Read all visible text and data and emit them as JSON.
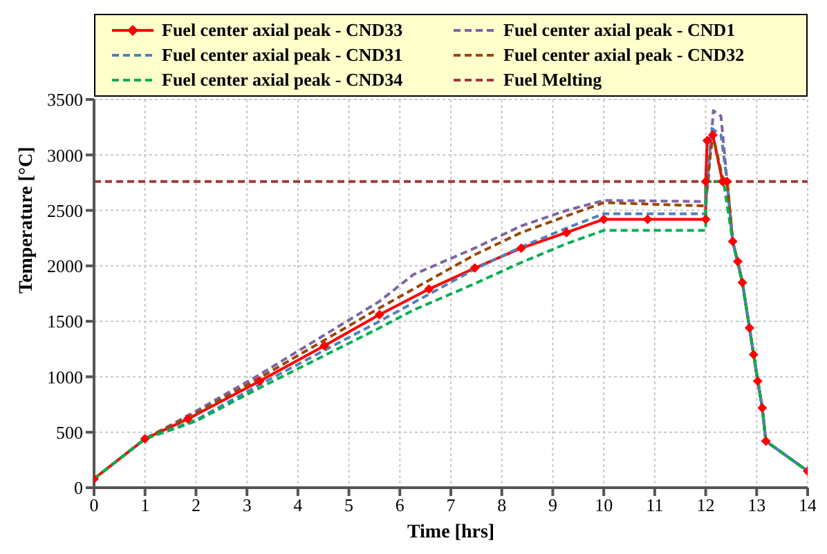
{
  "chart_data": {
    "type": "line",
    "xlabel": "Time [hrs]",
    "ylabel": "Temperature [°C]",
    "xlim": [
      0,
      14
    ],
    "xticks": [
      0,
      1,
      2,
      3,
      4,
      5,
      6,
      7,
      8,
      9,
      10,
      11,
      12,
      13,
      14
    ],
    "ylim": [
      0,
      3500
    ],
    "yticks": [
      0,
      500,
      1000,
      1500,
      2000,
      2500,
      3000,
      3500
    ],
    "grid": true,
    "legend": "top",
    "series": [
      {
        "name": "Fuel center axial peak - CND33",
        "color": "#ff0000",
        "marker": "diamond",
        "line_style": "solid",
        "x": [
          0,
          1,
          1.84,
          3.25,
          4.52,
          5.6,
          6.57,
          7.47,
          8.38,
          9.27,
          10,
          10.86,
          12,
          12,
          12.03,
          12.14,
          12.33,
          12.42,
          12.53,
          12.63,
          12.72,
          12.86,
          12.94,
          13.02,
          13.11,
          13.18,
          14
        ],
        "values": [
          80,
          440,
          620,
          960,
          1280,
          1560,
          1790,
          1980,
          2160,
          2300,
          2420,
          2420,
          2420,
          2760,
          3130,
          3180,
          2760,
          2760,
          2220,
          2040,
          1850,
          1440,
          1200,
          960,
          720,
          420,
          150
        ]
      },
      {
        "name": "Fuel center axial peak - CND1",
        "color": "#7f64a2",
        "marker": "none",
        "line_style": "dashed",
        "x": [
          0,
          1,
          2,
          3.25,
          5.6,
          6.26,
          7.47,
          8.38,
          9.27,
          10,
          12,
          12.05,
          12.15,
          12.3,
          12.42,
          12.53,
          12.72,
          12.94,
          13.11,
          13.18,
          14
        ],
        "values": [
          80,
          440,
          690,
          1020,
          1680,
          1920,
          2160,
          2360,
          2500,
          2590,
          2580,
          2760,
          3400,
          3350,
          2760,
          2220,
          1850,
          1200,
          720,
          420,
          150
        ]
      },
      {
        "name": "Fuel center axial peak - CND31",
        "color": "#4f81bd",
        "marker": "none",
        "line_style": "dashed",
        "x": [
          0,
          1,
          2,
          3.25,
          5.6,
          7.47,
          8.38,
          9.27,
          10,
          12,
          12.03,
          12.12,
          12.3,
          12.42,
          12.53,
          12.72,
          12.94,
          13.11,
          13.18,
          14
        ],
        "values": [
          80,
          440,
          610,
          930,
          1500,
          1970,
          2170,
          2340,
          2470,
          2470,
          2760,
          3240,
          3180,
          2760,
          2220,
          1850,
          1200,
          720,
          420,
          150
        ]
      },
      {
        "name": "Fuel center axial peak - CND32",
        "color": "#984807",
        "marker": "none",
        "line_style": "dashed",
        "x": [
          0,
          1,
          2,
          3.25,
          5.6,
          7.47,
          8.38,
          9.27,
          10,
          12,
          12.03,
          12.14,
          12.33,
          12.42,
          12.53,
          12.72,
          12.94,
          13.11,
          13.18,
          14
        ],
        "values": [
          80,
          440,
          670,
          990,
          1620,
          2100,
          2300,
          2450,
          2570,
          2540,
          2760,
          3180,
          2800,
          2760,
          2220,
          1850,
          1200,
          720,
          420,
          150
        ]
      },
      {
        "name": "Fuel center axial peak - CND34",
        "color": "#00b050",
        "marker": "none",
        "line_style": "dashed",
        "x": [
          0,
          1,
          2,
          3.25,
          5.6,
          6.26,
          7.47,
          8.38,
          9.27,
          10,
          12,
          12,
          12.35,
          12.53,
          12.72,
          12.94,
          13.11,
          13.18,
          14
        ],
        "values": [
          80,
          440,
          600,
          900,
          1440,
          1600,
          1840,
          2030,
          2200,
          2320,
          2320,
          2760,
          2760,
          2220,
          1850,
          1200,
          720,
          420,
          150
        ]
      }
    ],
    "ref_lines": [
      {
        "axis": "y",
        "value": 2760,
        "label": "Fuel Melting",
        "color": "#a0393a",
        "line_style": "dashed"
      }
    ]
  }
}
